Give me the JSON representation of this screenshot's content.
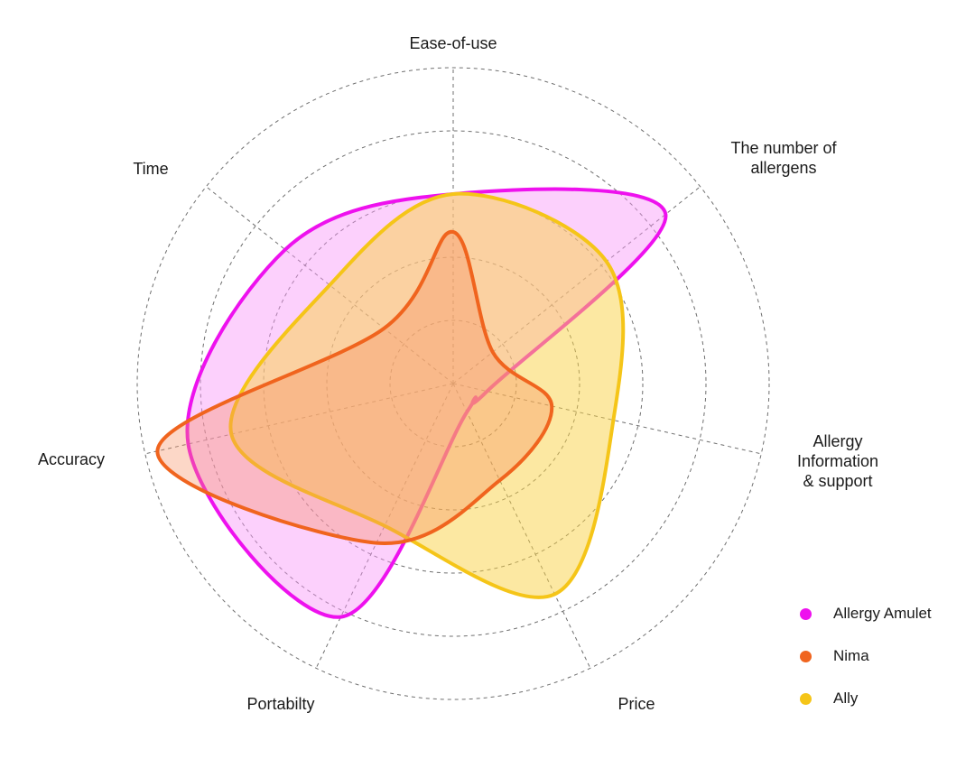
{
  "chart_data": {
    "type": "radar",
    "axes": [
      {
        "id": "ease",
        "lines": [
          "Ease-of-use"
        ]
      },
      {
        "id": "allergens",
        "lines": [
          "The number of",
          "allergens"
        ]
      },
      {
        "id": "info",
        "lines": [
          "Allergy",
          "Information",
          "& support"
        ]
      },
      {
        "id": "price",
        "lines": [
          "Price"
        ]
      },
      {
        "id": "portability",
        "lines": [
          "Portabilty"
        ]
      },
      {
        "id": "accuracy",
        "lines": [
          "Accuracy"
        ]
      },
      {
        "id": "time",
        "lines": [
          "Time"
        ]
      }
    ],
    "rings": 5,
    "range": [
      0,
      5
    ],
    "series": [
      {
        "name": "Allergy Amulet",
        "color": "#ee11ee",
        "fill": "rgba(248,150,248,0.45)",
        "values": [
          3,
          4.3,
          0.55,
          0.5,
          4.1,
          4.3,
          3.4
        ]
      },
      {
        "name": "Ally",
        "color": "#f5c518",
        "fill": "rgba(250,210,70,0.5)",
        "values": [
          3,
          3.1,
          2.6,
          3.7,
          2.5,
          3.6,
          2.5
        ]
      },
      {
        "name": "Nima",
        "color": "#f0641e",
        "fill": "rgba(245,140,95,0.35)",
        "values": [
          2.4,
          0.8,
          1.6,
          1.7,
          2.8,
          4.8,
          1.4
        ]
      }
    ]
  }
}
